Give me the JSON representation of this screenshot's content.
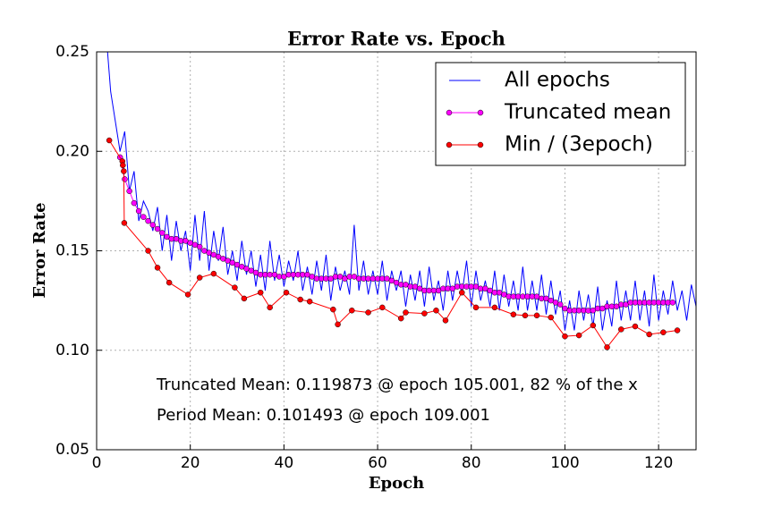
{
  "chart_data": {
    "type": "line",
    "title": "Error Rate vs. Epoch",
    "x_label": "Epoch",
    "y_label": "Error Rate",
    "xlim": [
      0,
      128
    ],
    "ylim": [
      0.05,
      0.25
    ],
    "xticks": [
      0,
      20,
      40,
      60,
      80,
      100,
      120
    ],
    "yticks": [
      0.05,
      {
        "value": 0.1,
        "label": "0.10"
      },
      0.15,
      {
        "value": 0.2,
        "label": "0.20"
      },
      0.25
    ],
    "grid": true,
    "legend": "upper right",
    "annotations": [
      "Truncated Mean: 0.119873 @ epoch 105.001, 82 % of the x",
      "Period Mean: 0.101493 @ epoch 109.001"
    ],
    "series": [
      {
        "name": "All epochs",
        "color": "#0000ff",
        "marker": false,
        "x": [
          2,
          3,
          4,
          5,
          6,
          7,
          8,
          9,
          10,
          11,
          12,
          13,
          14,
          15,
          16,
          17,
          18,
          19,
          20,
          21,
          22,
          23,
          24,
          25,
          26,
          27,
          28,
          29,
          30,
          31,
          32,
          33,
          34,
          35,
          36,
          37,
          38,
          39,
          40,
          41,
          42,
          43,
          44,
          45,
          46,
          47,
          48,
          49,
          50,
          51,
          52,
          53,
          54,
          55,
          56,
          57,
          58,
          59,
          60,
          61,
          62,
          63,
          64,
          65,
          66,
          67,
          68,
          69,
          70,
          71,
          72,
          73,
          74,
          75,
          76,
          77,
          78,
          79,
          80,
          81,
          82,
          83,
          84,
          85,
          86,
          87,
          88,
          89,
          90,
          91,
          92,
          93,
          94,
          95,
          96,
          97,
          98,
          99,
          100,
          101,
          102,
          103,
          104,
          105,
          106,
          107,
          108,
          109,
          110,
          111,
          112,
          113,
          114,
          115,
          116,
          117,
          118,
          119,
          120,
          121,
          122,
          123,
          124,
          125,
          126,
          127,
          128
        ],
        "values": [
          0.26,
          0.23,
          0.215,
          0.2,
          0.21,
          0.18,
          0.19,
          0.165,
          0.175,
          0.17,
          0.16,
          0.172,
          0.15,
          0.168,
          0.145,
          0.165,
          0.15,
          0.16,
          0.14,
          0.168,
          0.145,
          0.17,
          0.14,
          0.16,
          0.145,
          0.162,
          0.138,
          0.15,
          0.135,
          0.155,
          0.138,
          0.15,
          0.132,
          0.148,
          0.13,
          0.155,
          0.135,
          0.148,
          0.132,
          0.145,
          0.135,
          0.15,
          0.13,
          0.142,
          0.128,
          0.145,
          0.13,
          0.148,
          0.125,
          0.142,
          0.13,
          0.14,
          0.128,
          0.163,
          0.13,
          0.145,
          0.128,
          0.14,
          0.128,
          0.145,
          0.125,
          0.14,
          0.13,
          0.14,
          0.122,
          0.138,
          0.125,
          0.14,
          0.122,
          0.142,
          0.125,
          0.135,
          0.12,
          0.14,
          0.125,
          0.14,
          0.128,
          0.145,
          0.122,
          0.14,
          0.125,
          0.135,
          0.122,
          0.14,
          0.12,
          0.138,
          0.122,
          0.135,
          0.12,
          0.142,
          0.12,
          0.135,
          0.12,
          0.138,
          0.118,
          0.135,
          0.118,
          0.13,
          0.11,
          0.125,
          0.11,
          0.13,
          0.115,
          0.128,
          0.112,
          0.132,
          0.11,
          0.125,
          0.112,
          0.135,
          0.115,
          0.13,
          0.115,
          0.135,
          0.115,
          0.13,
          0.112,
          0.138,
          0.115,
          0.13,
          0.118,
          0.135,
          0.12,
          0.13,
          0.115,
          0.133,
          0.122
        ]
      },
      {
        "name": "Truncated mean",
        "color": "#ff00ff",
        "marker": true,
        "x": [
          5,
          6,
          7,
          8,
          9,
          10,
          11,
          12,
          13,
          14,
          15,
          16,
          17,
          18,
          19,
          20,
          21,
          22,
          23,
          24,
          25,
          26,
          27,
          28,
          29,
          30,
          31,
          32,
          33,
          34,
          35,
          36,
          37,
          38,
          39,
          40,
          41,
          42,
          43,
          44,
          45,
          46,
          47,
          48,
          49,
          50,
          51,
          52,
          53,
          54,
          55,
          56,
          57,
          58,
          59,
          60,
          61,
          62,
          63,
          64,
          65,
          66,
          67,
          68,
          69,
          70,
          71,
          72,
          73,
          74,
          75,
          76,
          77,
          78,
          79,
          80,
          81,
          82,
          83,
          84,
          85,
          86,
          87,
          88,
          89,
          90,
          91,
          92,
          93,
          94,
          95,
          96,
          97,
          98,
          99,
          100,
          101,
          102,
          103,
          104,
          105,
          106,
          107,
          108,
          109,
          110,
          111,
          112,
          113,
          114,
          115,
          116,
          117,
          118,
          119,
          120,
          121,
          122,
          123
        ],
        "values": [
          0.197,
          0.186,
          0.18,
          0.174,
          0.17,
          0.167,
          0.165,
          0.163,
          0.161,
          0.159,
          0.157,
          0.156,
          0.156,
          0.155,
          0.155,
          0.154,
          0.153,
          0.152,
          0.15,
          0.149,
          0.148,
          0.147,
          0.146,
          0.145,
          0.144,
          0.143,
          0.142,
          0.141,
          0.14,
          0.139,
          0.138,
          0.138,
          0.138,
          0.138,
          0.137,
          0.137,
          0.138,
          0.138,
          0.138,
          0.138,
          0.138,
          0.137,
          0.136,
          0.136,
          0.136,
          0.136,
          0.137,
          0.137,
          0.136,
          0.137,
          0.137,
          0.136,
          0.136,
          0.136,
          0.136,
          0.136,
          0.136,
          0.136,
          0.135,
          0.134,
          0.133,
          0.133,
          0.132,
          0.132,
          0.131,
          0.13,
          0.13,
          0.13,
          0.13,
          0.131,
          0.131,
          0.131,
          0.132,
          0.132,
          0.132,
          0.132,
          0.132,
          0.131,
          0.131,
          0.13,
          0.129,
          0.129,
          0.128,
          0.127,
          0.127,
          0.127,
          0.127,
          0.127,
          0.127,
          0.127,
          0.126,
          0.126,
          0.125,
          0.124,
          0.123,
          0.121,
          0.12,
          0.12,
          0.12,
          0.12,
          0.1199,
          0.12,
          0.121,
          0.121,
          0.122,
          0.122,
          0.122,
          0.123,
          0.123,
          0.124,
          0.124,
          0.124,
          0.124,
          0.124,
          0.124,
          0.124,
          0.124,
          0.124,
          0.124
        ]
      },
      {
        "name": "Min / (3epoch)",
        "color": "#ff0000",
        "marker": true,
        "x": [
          2.7,
          5.5,
          5.6,
          5.8,
          5.9,
          11,
          13,
          15.5,
          19.5,
          22,
          25,
          29.5,
          31.5,
          35,
          37,
          40.5,
          43.5,
          45.5,
          50.5,
          51.5,
          54.5,
          58,
          61,
          65,
          66,
          70,
          72.5,
          74.5,
          78,
          81,
          85,
          89,
          91.5,
          94,
          97,
          100,
          103,
          106,
          109,
          112,
          115,
          118,
          121,
          124
        ],
        "values": [
          0.2055,
          0.195,
          0.193,
          0.19,
          0.164,
          0.15,
          0.1415,
          0.134,
          0.128,
          0.1365,
          0.1385,
          0.1315,
          0.126,
          0.129,
          0.1215,
          0.129,
          0.1255,
          0.1245,
          0.1205,
          0.113,
          0.12,
          0.119,
          0.1215,
          0.116,
          0.119,
          0.1185,
          0.12,
          0.115,
          0.129,
          0.1215,
          0.1215,
          0.118,
          0.1175,
          0.1175,
          0.1165,
          0.107,
          0.1075,
          0.1125,
          0.1015,
          0.1105,
          0.112,
          0.108,
          0.109,
          0.11
        ]
      }
    ]
  }
}
